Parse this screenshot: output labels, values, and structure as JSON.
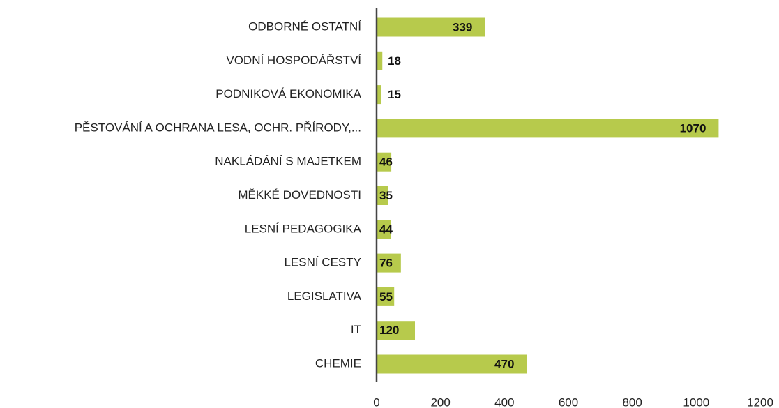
{
  "chart_data": {
    "type": "bar",
    "orientation": "horizontal",
    "categories": [
      "ODBORNÉ OSTATNÍ",
      "VODNÍ HOSPODÁŘSTVÍ",
      "PODNIKOVÁ EKONOMIKA",
      "PĚSTOVÁNÍ A OCHRANA LESA, OCHR. PŘÍRODY,...",
      "NAKLÁDÁNÍ S MAJETKEM",
      "MĚKKÉ DOVEDNOSTI",
      "LESNÍ PEDAGOGIKA",
      "LESNÍ CESTY",
      "LEGISLATIVA",
      "IT",
      "CHEMIE"
    ],
    "values": [
      339,
      18,
      15,
      1070,
      46,
      35,
      44,
      76,
      55,
      120,
      470
    ],
    "color": "#b7ca4c",
    "xlim": [
      0,
      1200
    ],
    "xticks": [
      0,
      200,
      400,
      600,
      800,
      1000,
      1200
    ],
    "grid": false
  }
}
